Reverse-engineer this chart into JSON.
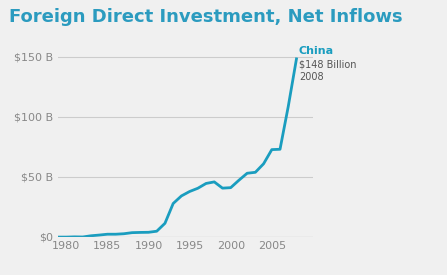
{
  "title": "Foreign Direct Investment, Net Inflows",
  "title_color": "#2b9bbf",
  "title_fontsize": 13,
  "background_color": "#f0f0f0",
  "plot_bg_color": "#f0f0f0",
  "line_color": "#1a9dbf",
  "line_width": 2.0,
  "annotation_label": "China",
  "annotation_value": "$148 Billion",
  "annotation_year": "2008",
  "annotation_color": "#1a9dbf",
  "xlim": [
    1979,
    2010
  ],
  "ylim": [
    0,
    165
  ],
  "yticks": [
    0,
    50,
    100,
    150
  ],
  "ytick_labels": [
    "$0",
    "$50 B",
    "$100 B",
    "$150 B"
  ],
  "xticks": [
    1980,
    1985,
    1990,
    1995,
    2000,
    2005
  ],
  "years": [
    1979,
    1980,
    1981,
    1982,
    1983,
    1984,
    1985,
    1986,
    1987,
    1988,
    1989,
    1990,
    1991,
    1992,
    1993,
    1994,
    1995,
    1996,
    1997,
    1998,
    1999,
    2000,
    2001,
    2002,
    2003,
    2004,
    2005,
    2006,
    2007,
    2008
  ],
  "values": [
    -0.5,
    -0.5,
    -0.3,
    -0.4,
    0.6,
    1.2,
    1.9,
    1.9,
    2.3,
    3.2,
    3.4,
    3.5,
    4.4,
    11.0,
    27.5,
    33.8,
    37.5,
    40.2,
    44.2,
    45.5,
    40.3,
    40.7,
    46.9,
    52.7,
    53.5,
    60.6,
    72.4,
    72.7,
    108.3,
    148.0
  ]
}
